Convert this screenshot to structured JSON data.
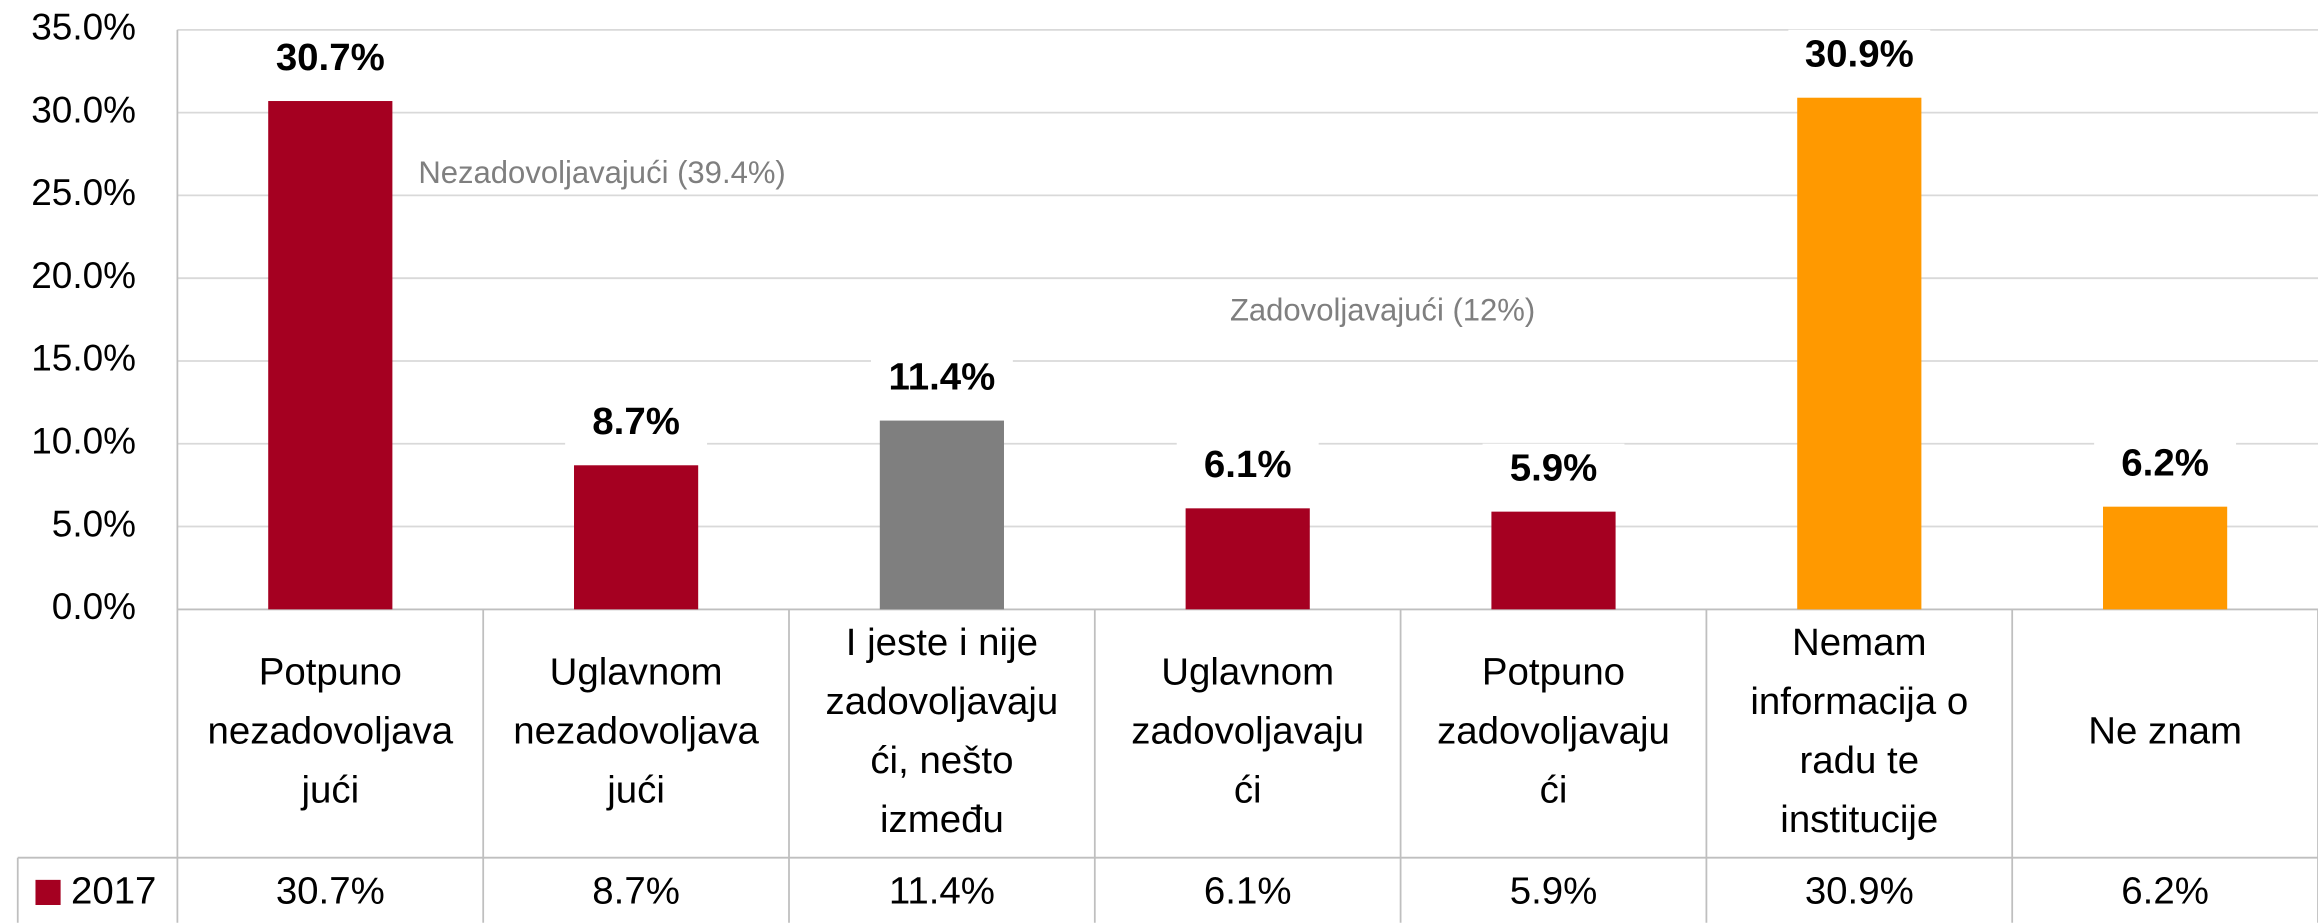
{
  "chart_data": {
    "type": "bar",
    "categories": [
      "Potpuno\nnezadovoljava\njući",
      "Uglavnom\nnezadovoljava\njući",
      "I jeste i nije\nzadovoljavaju\nći, nešto\nizmeđu",
      "Uglavnom\nzadovoljavaju\nći",
      "Potpuno\nzadovoljavaju\nći",
      "Nemam\ninformacija o\nradu te\ninstitucije",
      "Ne znam"
    ],
    "series": [
      {
        "name": "2017",
        "color": "#a50021",
        "values": [
          30.7,
          8.7,
          11.4,
          6.1,
          5.9,
          30.9,
          6.2
        ],
        "value_labels": [
          "30.7%",
          "8.7%",
          "11.4%",
          "6.1%",
          "5.9%",
          "30.9%",
          "6.2%"
        ],
        "colors": [
          "#a50021",
          "#a50021",
          "#7f7f7f",
          "#a50021",
          "#a50021",
          "#ff9900",
          "#ff9900"
        ]
      }
    ],
    "ylim": [
      0,
      35
    ],
    "yticks": [
      {
        "value": 0,
        "label": "0.0%"
      },
      {
        "value": 5,
        "label": "5.0%"
      },
      {
        "value": 10,
        "label": "10.0%"
      },
      {
        "value": 15,
        "label": "15.0%"
      },
      {
        "value": 20,
        "label": "20.0%"
      },
      {
        "value": 25,
        "label": "25.0%"
      },
      {
        "value": 30,
        "label": "30.0%"
      },
      {
        "value": 35,
        "label": "35.0%"
      }
    ],
    "grid": true,
    "annotations": [
      "Nezadovoljavajući  (39.4%)",
      "Zadovoljavajući  (12%)"
    ],
    "data_table": true
  }
}
